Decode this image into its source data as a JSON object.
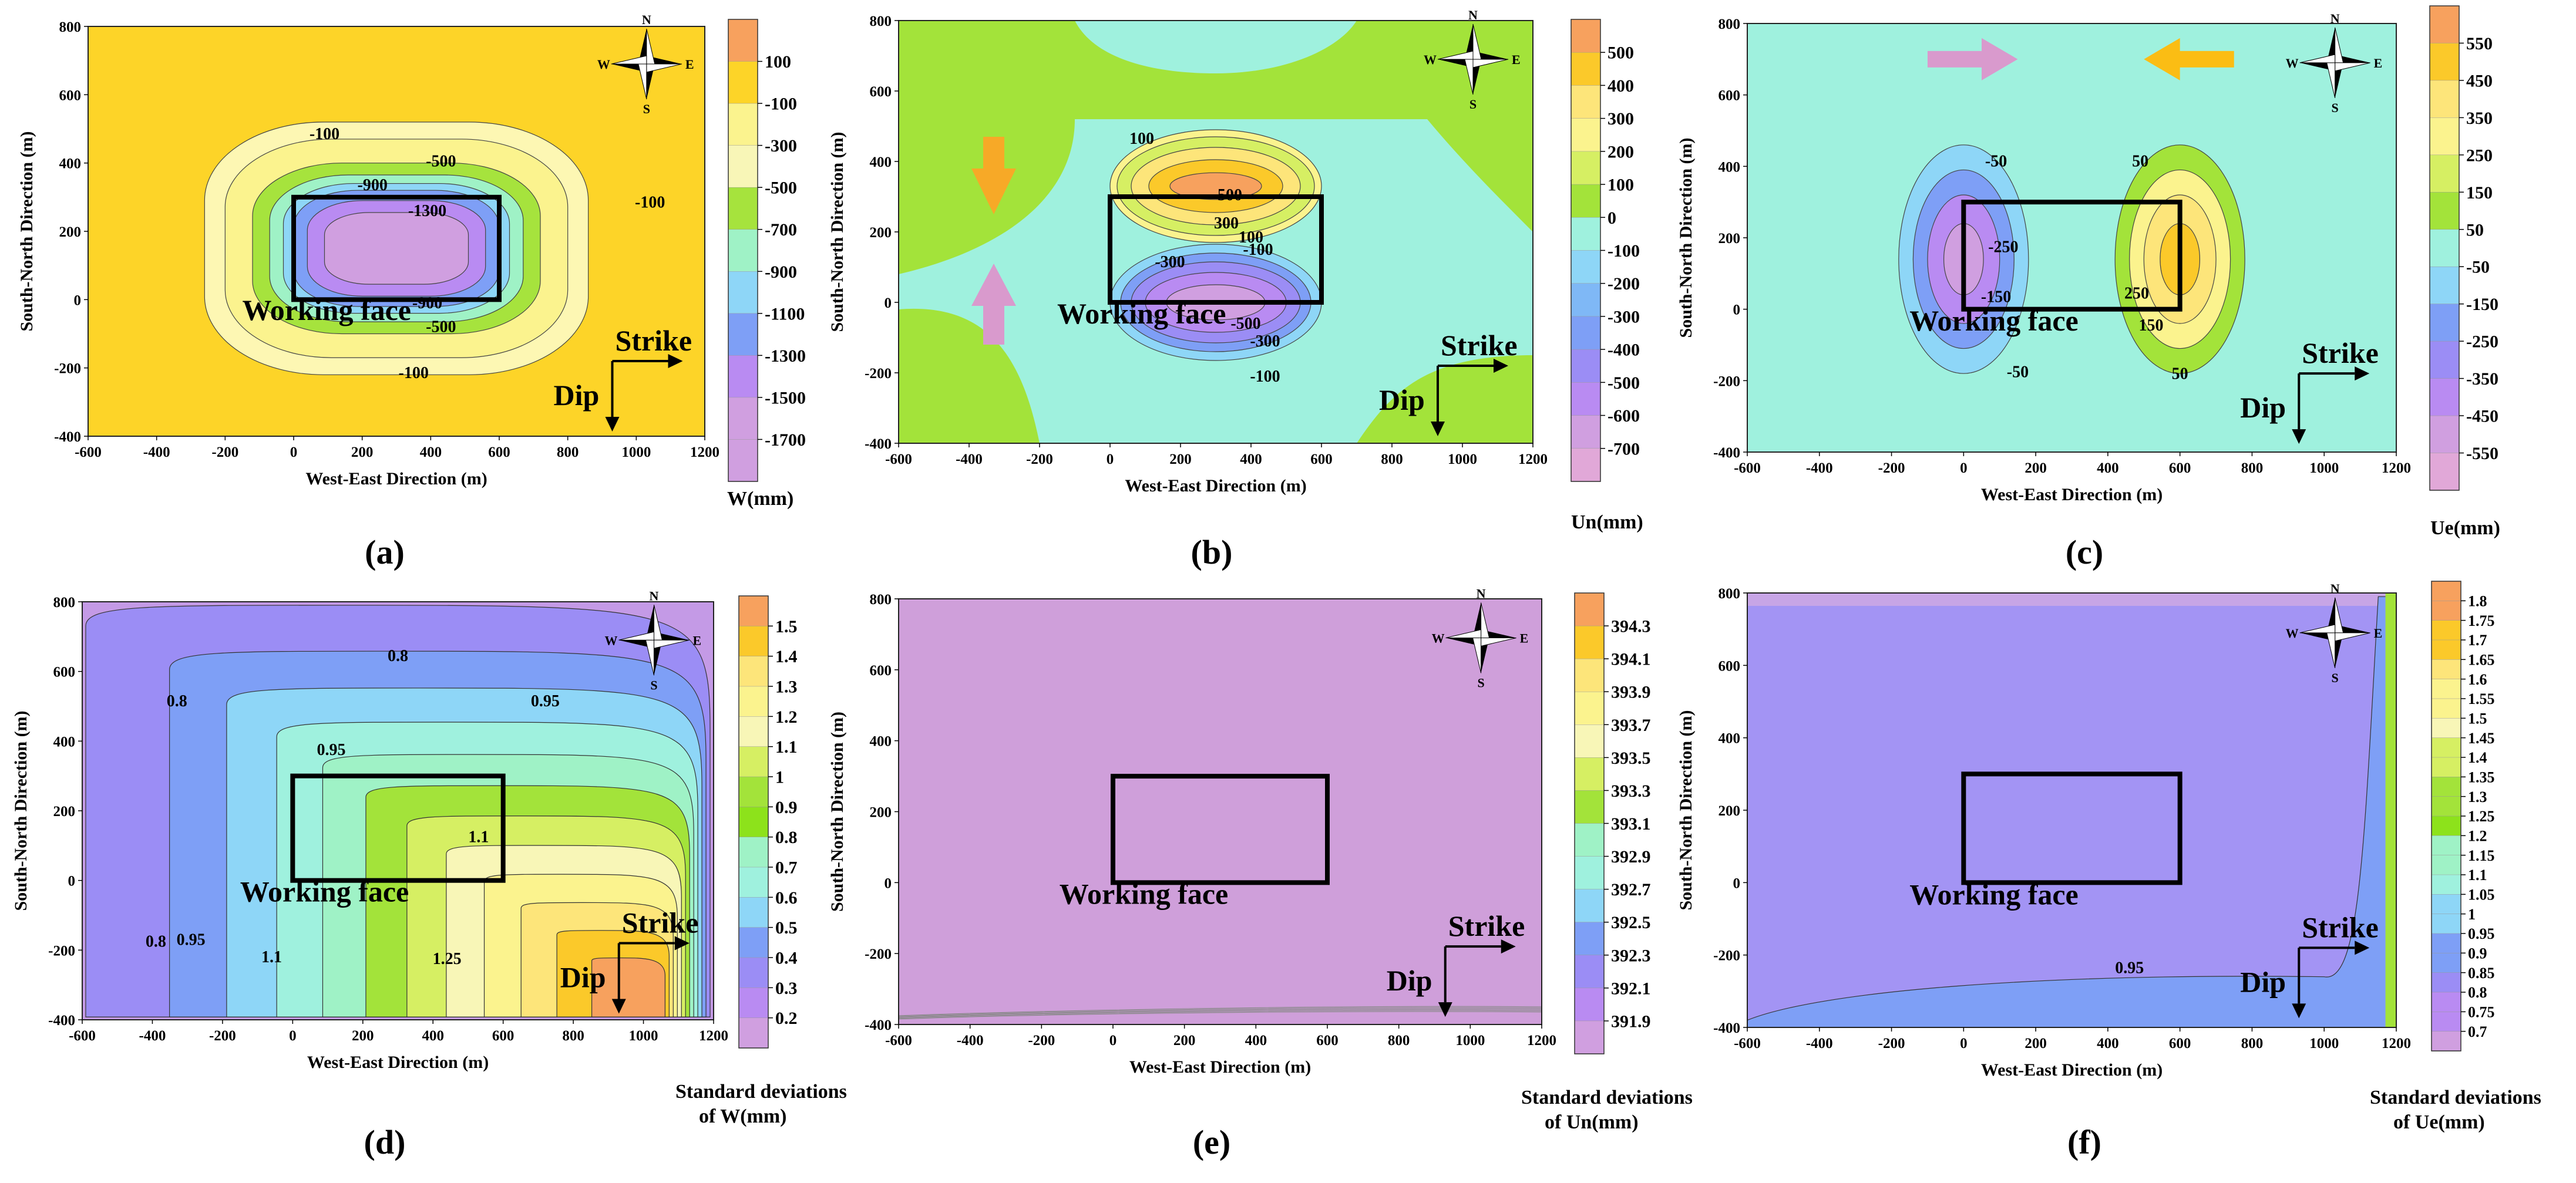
{
  "colors": {
    "orange_peak": "#f7a15e",
    "yellow": "#fdd428",
    "light_yellow": "#fbf38e",
    "pale_yellow": "#fdf7b3",
    "lime": "#a3e33a",
    "green": "#8de21b",
    "mint": "#9cf5c8",
    "aqua": "#9ff1de",
    "sky": "#8fd6f7",
    "blue": "#7e9ff6",
    "lavender": "#b98bf2",
    "mauve": "#d09fe0",
    "violet": "#bf97ee",
    "pink_arrow": "#d99acd",
    "orange_arrow": "#f7a927",
    "yellow_arrow": "#fbbd14"
  },
  "labels": {
    "working_face": "Working face",
    "strike": "Strike",
    "dip": "Dip",
    "compass_n": "N",
    "compass_s": "S",
    "compass_e": "E",
    "compass_w": "W"
  },
  "chart_data": [
    {
      "panel": "(a)",
      "type": "heatmap",
      "title": "",
      "xlabel": "West-East Direction (m)",
      "ylabel": "South-North Direction (m)",
      "xlim": [
        -600,
        1200
      ],
      "ylim": [
        -400,
        800
      ],
      "xticks": [
        "-600",
        "-400",
        "-200",
        "0",
        "200",
        "400",
        "600",
        "800",
        "1000",
        "1200"
      ],
      "yticks": [
        "-400",
        "-200",
        "0",
        "200",
        "400",
        "600",
        "800"
      ],
      "working_face": {
        "x": [
          0,
          600
        ],
        "y": [
          0,
          300
        ]
      },
      "colorbar": {
        "unit": "W(mm)",
        "ticks": [
          "100",
          "-100",
          "-300",
          "-500",
          "-700",
          "-900",
          "-1100",
          "-1300",
          "-1500",
          "-1700"
        ]
      },
      "contour_labels": [
        {
          "text": "-100",
          "x": 90,
          "y": 470
        },
        {
          "text": "-500",
          "x": 430,
          "y": 390
        },
        {
          "text": "-900",
          "x": 230,
          "y": 320
        },
        {
          "text": "-1300",
          "x": 390,
          "y": 245
        },
        {
          "text": "-900",
          "x": 390,
          "y": -25
        },
        {
          "text": "-500",
          "x": 430,
          "y": -95
        },
        {
          "text": "-100",
          "x": 1040,
          "y": 270
        },
        {
          "text": "-100",
          "x": 350,
          "y": -230
        }
      ]
    },
    {
      "panel": "(b)",
      "type": "heatmap",
      "xlabel": "West-East Direction (m)",
      "ylabel": "South-North Direction (m)",
      "xlim": [
        -600,
        1200
      ],
      "ylim": [
        -400,
        800
      ],
      "xticks": [
        "-600",
        "-400",
        "-200",
        "0",
        "200",
        "400",
        "600",
        "800",
        "1000",
        "1200"
      ],
      "yticks": [
        "-400",
        "-200",
        "0",
        "200",
        "400",
        "600",
        "800"
      ],
      "working_face": {
        "x": [
          0,
          600
        ],
        "y": [
          0,
          300
        ]
      },
      "colorbar": {
        "unit": "Un(mm)",
        "ticks": [
          "500",
          "400",
          "300",
          "200",
          "100",
          "0",
          "-100",
          "-200",
          "-300",
          "-400",
          "-500",
          "-600",
          "-700"
        ]
      },
      "contour_labels": [
        {
          "text": "100",
          "x": 90,
          "y": 450
        },
        {
          "text": "500",
          "x": 340,
          "y": 290
        },
        {
          "text": "300",
          "x": 330,
          "y": 210
        },
        {
          "text": "100",
          "x": 400,
          "y": 170
        },
        {
          "text": "-100",
          "x": 420,
          "y": 135
        },
        {
          "text": "-300",
          "x": 170,
          "y": 100
        },
        {
          "text": "-500",
          "x": 385,
          "y": -75
        },
        {
          "text": "-300",
          "x": 440,
          "y": -125
        },
        {
          "text": "-100",
          "x": 440,
          "y": -225
        }
      ]
    },
    {
      "panel": "(c)",
      "type": "heatmap",
      "xlabel": "West-East Direction (m)",
      "ylabel": "South-North Direction (m)",
      "xlim": [
        -600,
        1200
      ],
      "ylim": [
        -400,
        800
      ],
      "xticks": [
        "-600",
        "-400",
        "-200",
        "0",
        "200",
        "400",
        "600",
        "800",
        "1000",
        "1200"
      ],
      "yticks": [
        "-400",
        "-200",
        "0",
        "200",
        "400",
        "600",
        "800"
      ],
      "working_face": {
        "x": [
          0,
          600
        ],
        "y": [
          0,
          300
        ]
      },
      "colorbar": {
        "unit": "Ue(mm)",
        "ticks": [
          "550",
          "450",
          "350",
          "250",
          "150",
          "50",
          "-50",
          "-150",
          "-250",
          "-350",
          "-450",
          "-550"
        ]
      },
      "contour_labels": [
        {
          "text": "-50",
          "x": 90,
          "y": 400
        },
        {
          "text": "50",
          "x": 490,
          "y": 400
        },
        {
          "text": "-250",
          "x": 110,
          "y": 160
        },
        {
          "text": "-150",
          "x": 90,
          "y": 20
        },
        {
          "text": "250",
          "x": 480,
          "y": 30
        },
        {
          "text": "150",
          "x": 520,
          "y": -60
        },
        {
          "text": "-50",
          "x": 150,
          "y": -190
        },
        {
          "text": "50",
          "x": 600,
          "y": -195
        }
      ]
    },
    {
      "panel": "(d)",
      "type": "heatmap",
      "xlabel": "West-East Direction (m)",
      "ylabel": "South-North Direction (m)",
      "xlim": [
        -600,
        1200
      ],
      "ylim": [
        -400,
        800
      ],
      "xticks": [
        "-600",
        "-400",
        "-200",
        "0",
        "200",
        "400",
        "600",
        "800",
        "1000",
        "1200"
      ],
      "yticks": [
        "-400",
        "-200",
        "0",
        "200",
        "400",
        "600",
        "800"
      ],
      "working_face": {
        "x": [
          0,
          600
        ],
        "y": [
          0,
          300
        ]
      },
      "colorbar": {
        "unit_line1": "Standard deviations",
        "unit_line2": "of W(mm)",
        "ticks": [
          "1.5",
          "1.4",
          "1.3",
          "1.2",
          "1.1",
          "1",
          "0.9",
          "0.8",
          "0.7",
          "0.6",
          "0.5",
          "0.4",
          "0.3",
          "0.2"
        ]
      },
      "contour_labels": [
        {
          "text": "0.8",
          "x": 300,
          "y": 630
        },
        {
          "text": "0.8",
          "x": -330,
          "y": 500
        },
        {
          "text": "0.95",
          "x": 720,
          "y": 500
        },
        {
          "text": "0.95",
          "x": 110,
          "y": 360
        },
        {
          "text": "1.1",
          "x": 530,
          "y": 110
        },
        {
          "text": "0.8",
          "x": -390,
          "y": -190
        },
        {
          "text": "0.95",
          "x": -290,
          "y": -185
        },
        {
          "text": "1.1",
          "x": -60,
          "y": -235
        },
        {
          "text": "1.25",
          "x": 440,
          "y": -240
        }
      ]
    },
    {
      "panel": "(e)",
      "type": "heatmap",
      "xlabel": "West-East Direction (m)",
      "ylabel": "South-North Direction (m)",
      "xlim": [
        -600,
        1200
      ],
      "ylim": [
        -400,
        800
      ],
      "xticks": [
        "-600",
        "-400",
        "-200",
        "0",
        "200",
        "400",
        "600",
        "800",
        "1000",
        "1200"
      ],
      "yticks": [
        "-400",
        "-200",
        "0",
        "200",
        "400",
        "600",
        "800"
      ],
      "working_face": {
        "x": [
          0,
          600
        ],
        "y": [
          0,
          300
        ]
      },
      "colorbar": {
        "unit_line1": "Standard deviations",
        "unit_line2": "of Un(mm)",
        "ticks": [
          "394.3",
          "394.1",
          "393.9",
          "393.7",
          "393.5",
          "393.3",
          "393.1",
          "392.9",
          "392.7",
          "392.5",
          "392.3",
          "392.1",
          "391.9"
        ]
      },
      "contour_labels": []
    },
    {
      "panel": "(f)",
      "type": "heatmap",
      "xlabel": "West-East Direction (m)",
      "ylabel": "South-North Direction (m)",
      "xlim": [
        -600,
        1200
      ],
      "ylim": [
        -400,
        800
      ],
      "xticks": [
        "-600",
        "-400",
        "-200",
        "0",
        "200",
        "400",
        "600",
        "800",
        "1000",
        "1200"
      ],
      "yticks": [
        "-400",
        "-200",
        "0",
        "200",
        "400",
        "600",
        "800"
      ],
      "working_face": {
        "x": [
          0,
          600
        ],
        "y": [
          0,
          300
        ]
      },
      "colorbar": {
        "unit_line1": "Standard deviations",
        "unit_line2": "of Ue(mm)",
        "ticks": [
          "1.8",
          "1.75",
          "1.7",
          "1.65",
          "1.6",
          "1.55",
          "1.5",
          "1.45",
          "1.4",
          "1.35",
          "1.3",
          "1.25",
          "1.2",
          "1.15",
          "1.1",
          "1.05",
          "1",
          "0.95",
          "0.9",
          "0.85",
          "0.8",
          "0.75",
          "0.7"
        ]
      },
      "contour_labels": [
        {
          "text": "0.95",
          "x": 460,
          "y": -250
        }
      ]
    }
  ]
}
